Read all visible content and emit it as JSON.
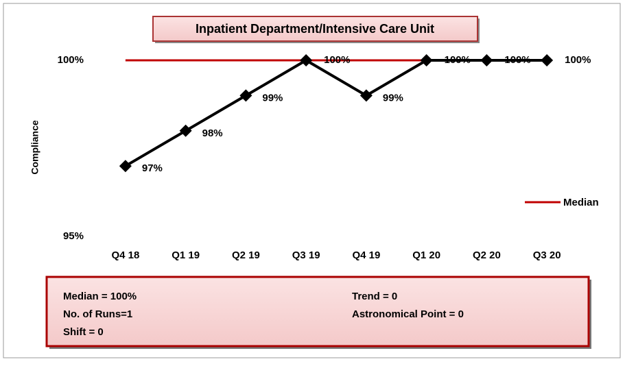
{
  "chart_data": {
    "type": "line",
    "title": "Inpatient Department/Intensive Care Unit",
    "ylabel": "Compliance",
    "categories": [
      "Q4 18",
      "Q1 19",
      "Q2 19",
      "Q3 19",
      "Q4 19",
      "Q1 20",
      "Q2 20",
      "Q3 20"
    ],
    "series": [
      {
        "color": "#000000",
        "values": [
          97,
          98,
          99,
          100,
          99,
          100,
          100,
          100
        ],
        "value_labels": [
          "97%",
          "98%",
          "99%",
          "100%",
          "99%",
          "100%",
          "100%",
          "100%"
        ]
      },
      {
        "name": "Median",
        "color": "#c00000",
        "values": [
          100,
          100,
          100,
          100,
          100,
          100,
          100,
          100
        ]
      }
    ],
    "ylim": [
      95,
      100
    ],
    "yticks": [
      {
        "value": 95,
        "label": "95%"
      },
      {
        "value": 100,
        "label": "100%"
      }
    ],
    "legend": "right",
    "annotations": [
      "Median = 100%",
      "No. of Runs=1",
      "Shift = 0",
      "Trend = 0",
      "Astronomical Point = 0"
    ]
  }
}
